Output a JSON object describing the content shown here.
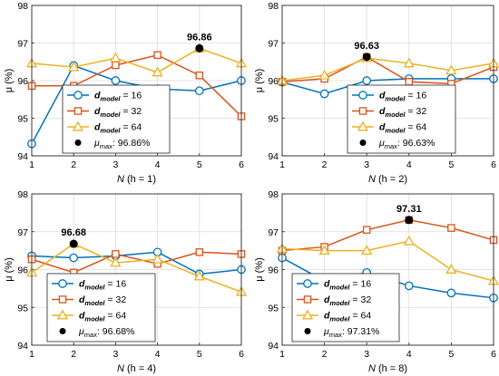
{
  "chart_data": [
    {
      "type": "line",
      "x": [
        1,
        2,
        3,
        4,
        5,
        6
      ],
      "xlabel_main": "N",
      "xlabel_sub": " (h = 1)",
      "ylabel": "μ (%)",
      "ylim": [
        94,
        98
      ],
      "yticks": [
        94,
        95,
        96,
        97,
        98
      ],
      "xticks": [
        1,
        2,
        3,
        4,
        5,
        6
      ],
      "grid": true,
      "legend_placement": "lower-center",
      "series": [
        {
          "name_main": "d",
          "name_sub": "model",
          "name_value": " = 16",
          "color": "#0072BD",
          "marker": "circle",
          "values": [
            94.32,
            96.4,
            96.0,
            95.78,
            95.73,
            96.0
          ]
        },
        {
          "name_main": "d",
          "name_sub": "model",
          "name_value": " = 32",
          "color": "#D95319",
          "marker": "square",
          "values": [
            95.86,
            95.86,
            96.41,
            96.68,
            96.14,
            95.05
          ]
        },
        {
          "name_main": "d",
          "name_sub": "model",
          "name_value": " = 64",
          "color": "#EDB120",
          "marker": "triangle",
          "values": [
            96.46,
            96.36,
            96.6,
            96.22,
            96.86,
            96.46
          ]
        }
      ],
      "max_point": {
        "x": 5,
        "y": 96.86,
        "label": "96.86"
      },
      "max_legend": {
        "symbol": "μ",
        "sub": "max",
        "text": ": 96.86%"
      }
    },
    {
      "type": "line",
      "x": [
        1,
        2,
        3,
        4,
        5,
        6
      ],
      "xlabel_main": "N",
      "xlabel_sub": " (h = 2)",
      "ylabel": "μ (%)",
      "ylim": [
        94,
        98
      ],
      "yticks": [
        94,
        95,
        96,
        97,
        98
      ],
      "xticks": [
        1,
        2,
        3,
        4,
        5,
        6
      ],
      "grid": true,
      "legend_placement": "lower-right",
      "series": [
        {
          "name_main": "d",
          "name_sub": "model",
          "name_value": " = 16",
          "color": "#0072BD",
          "marker": "circle",
          "values": [
            95.96,
            95.65,
            96.0,
            96.05,
            96.05,
            96.05
          ]
        },
        {
          "name_main": "d",
          "name_sub": "model",
          "name_value": " = 32",
          "color": "#D95319",
          "marker": "square",
          "values": [
            95.97,
            96.05,
            96.63,
            95.97,
            95.92,
            96.36
          ]
        },
        {
          "name_main": "d",
          "name_sub": "model",
          "name_value": " = 64",
          "color": "#EDB120",
          "marker": "triangle",
          "values": [
            96.0,
            96.14,
            96.6,
            96.46,
            96.27,
            96.46
          ]
        }
      ],
      "max_point": {
        "x": 3,
        "y": 96.63,
        "label": "96.63"
      },
      "max_legend": {
        "symbol": "μ",
        "sub": "max",
        "text": ": 96.63%"
      }
    },
    {
      "type": "line",
      "x": [
        1,
        2,
        3,
        4,
        5,
        6
      ],
      "xlabel_main": "N",
      "xlabel_sub": " (h = 4)",
      "ylabel": "μ (%)",
      "ylim": [
        94,
        98
      ],
      "yticks": [
        94,
        95,
        96,
        97,
        98
      ],
      "xticks": [
        1,
        2,
        3,
        4,
        5,
        6
      ],
      "grid": true,
      "legend_placement": "lower-center",
      "series": [
        {
          "name_main": "d",
          "name_sub": "model",
          "name_value": " = 16",
          "color": "#0072BD",
          "marker": "circle",
          "values": [
            96.36,
            96.31,
            96.36,
            96.46,
            95.88,
            96.0
          ]
        },
        {
          "name_main": "d",
          "name_sub": "model",
          "name_value": " = 32",
          "color": "#D95319",
          "marker": "square",
          "values": [
            96.27,
            95.92,
            96.41,
            96.15,
            96.46,
            96.41
          ]
        },
        {
          "name_main": "d",
          "name_sub": "model",
          "name_value": " = 64",
          "color": "#EDB120",
          "marker": "triangle",
          "values": [
            95.92,
            96.68,
            96.18,
            96.27,
            95.82,
            95.41
          ]
        }
      ],
      "max_point": {
        "x": 2,
        "y": 96.68,
        "label": "96.68"
      },
      "max_legend": {
        "symbol": "μ",
        "sub": "max",
        "text": ": 96.68%"
      }
    },
    {
      "type": "line",
      "x": [
        1,
        2,
        3,
        4,
        5,
        6
      ],
      "xlabel_main": "N",
      "xlabel_sub": " (h = 8)",
      "ylabel": "μ (%)",
      "ylim": [
        94,
        98
      ],
      "yticks": [
        94,
        95,
        96,
        97,
        98
      ],
      "xticks": [
        1,
        2,
        3,
        4,
        5,
        6
      ],
      "grid": true,
      "legend_placement": "lower-left",
      "series": [
        {
          "name_main": "d",
          "name_sub": "model",
          "name_value": " = 16",
          "color": "#0072BD",
          "marker": "circle",
          "values": [
            96.31,
            95.7,
            95.92,
            95.57,
            95.38,
            95.25
          ]
        },
        {
          "name_main": "d",
          "name_sub": "model",
          "name_value": " = 32",
          "color": "#D95319",
          "marker": "square",
          "values": [
            96.5,
            96.6,
            97.05,
            97.31,
            97.1,
            96.78
          ]
        },
        {
          "name_main": "d",
          "name_sub": "model",
          "name_value": " = 64",
          "color": "#EDB120",
          "marker": "triangle",
          "values": [
            96.55,
            96.5,
            96.5,
            96.75,
            96.0,
            95.7
          ]
        }
      ],
      "max_point": {
        "x": 4,
        "y": 97.31,
        "label": "97.31"
      },
      "max_legend": {
        "symbol": "μ",
        "sub": "max",
        "text": ": 97.31%"
      }
    }
  ]
}
